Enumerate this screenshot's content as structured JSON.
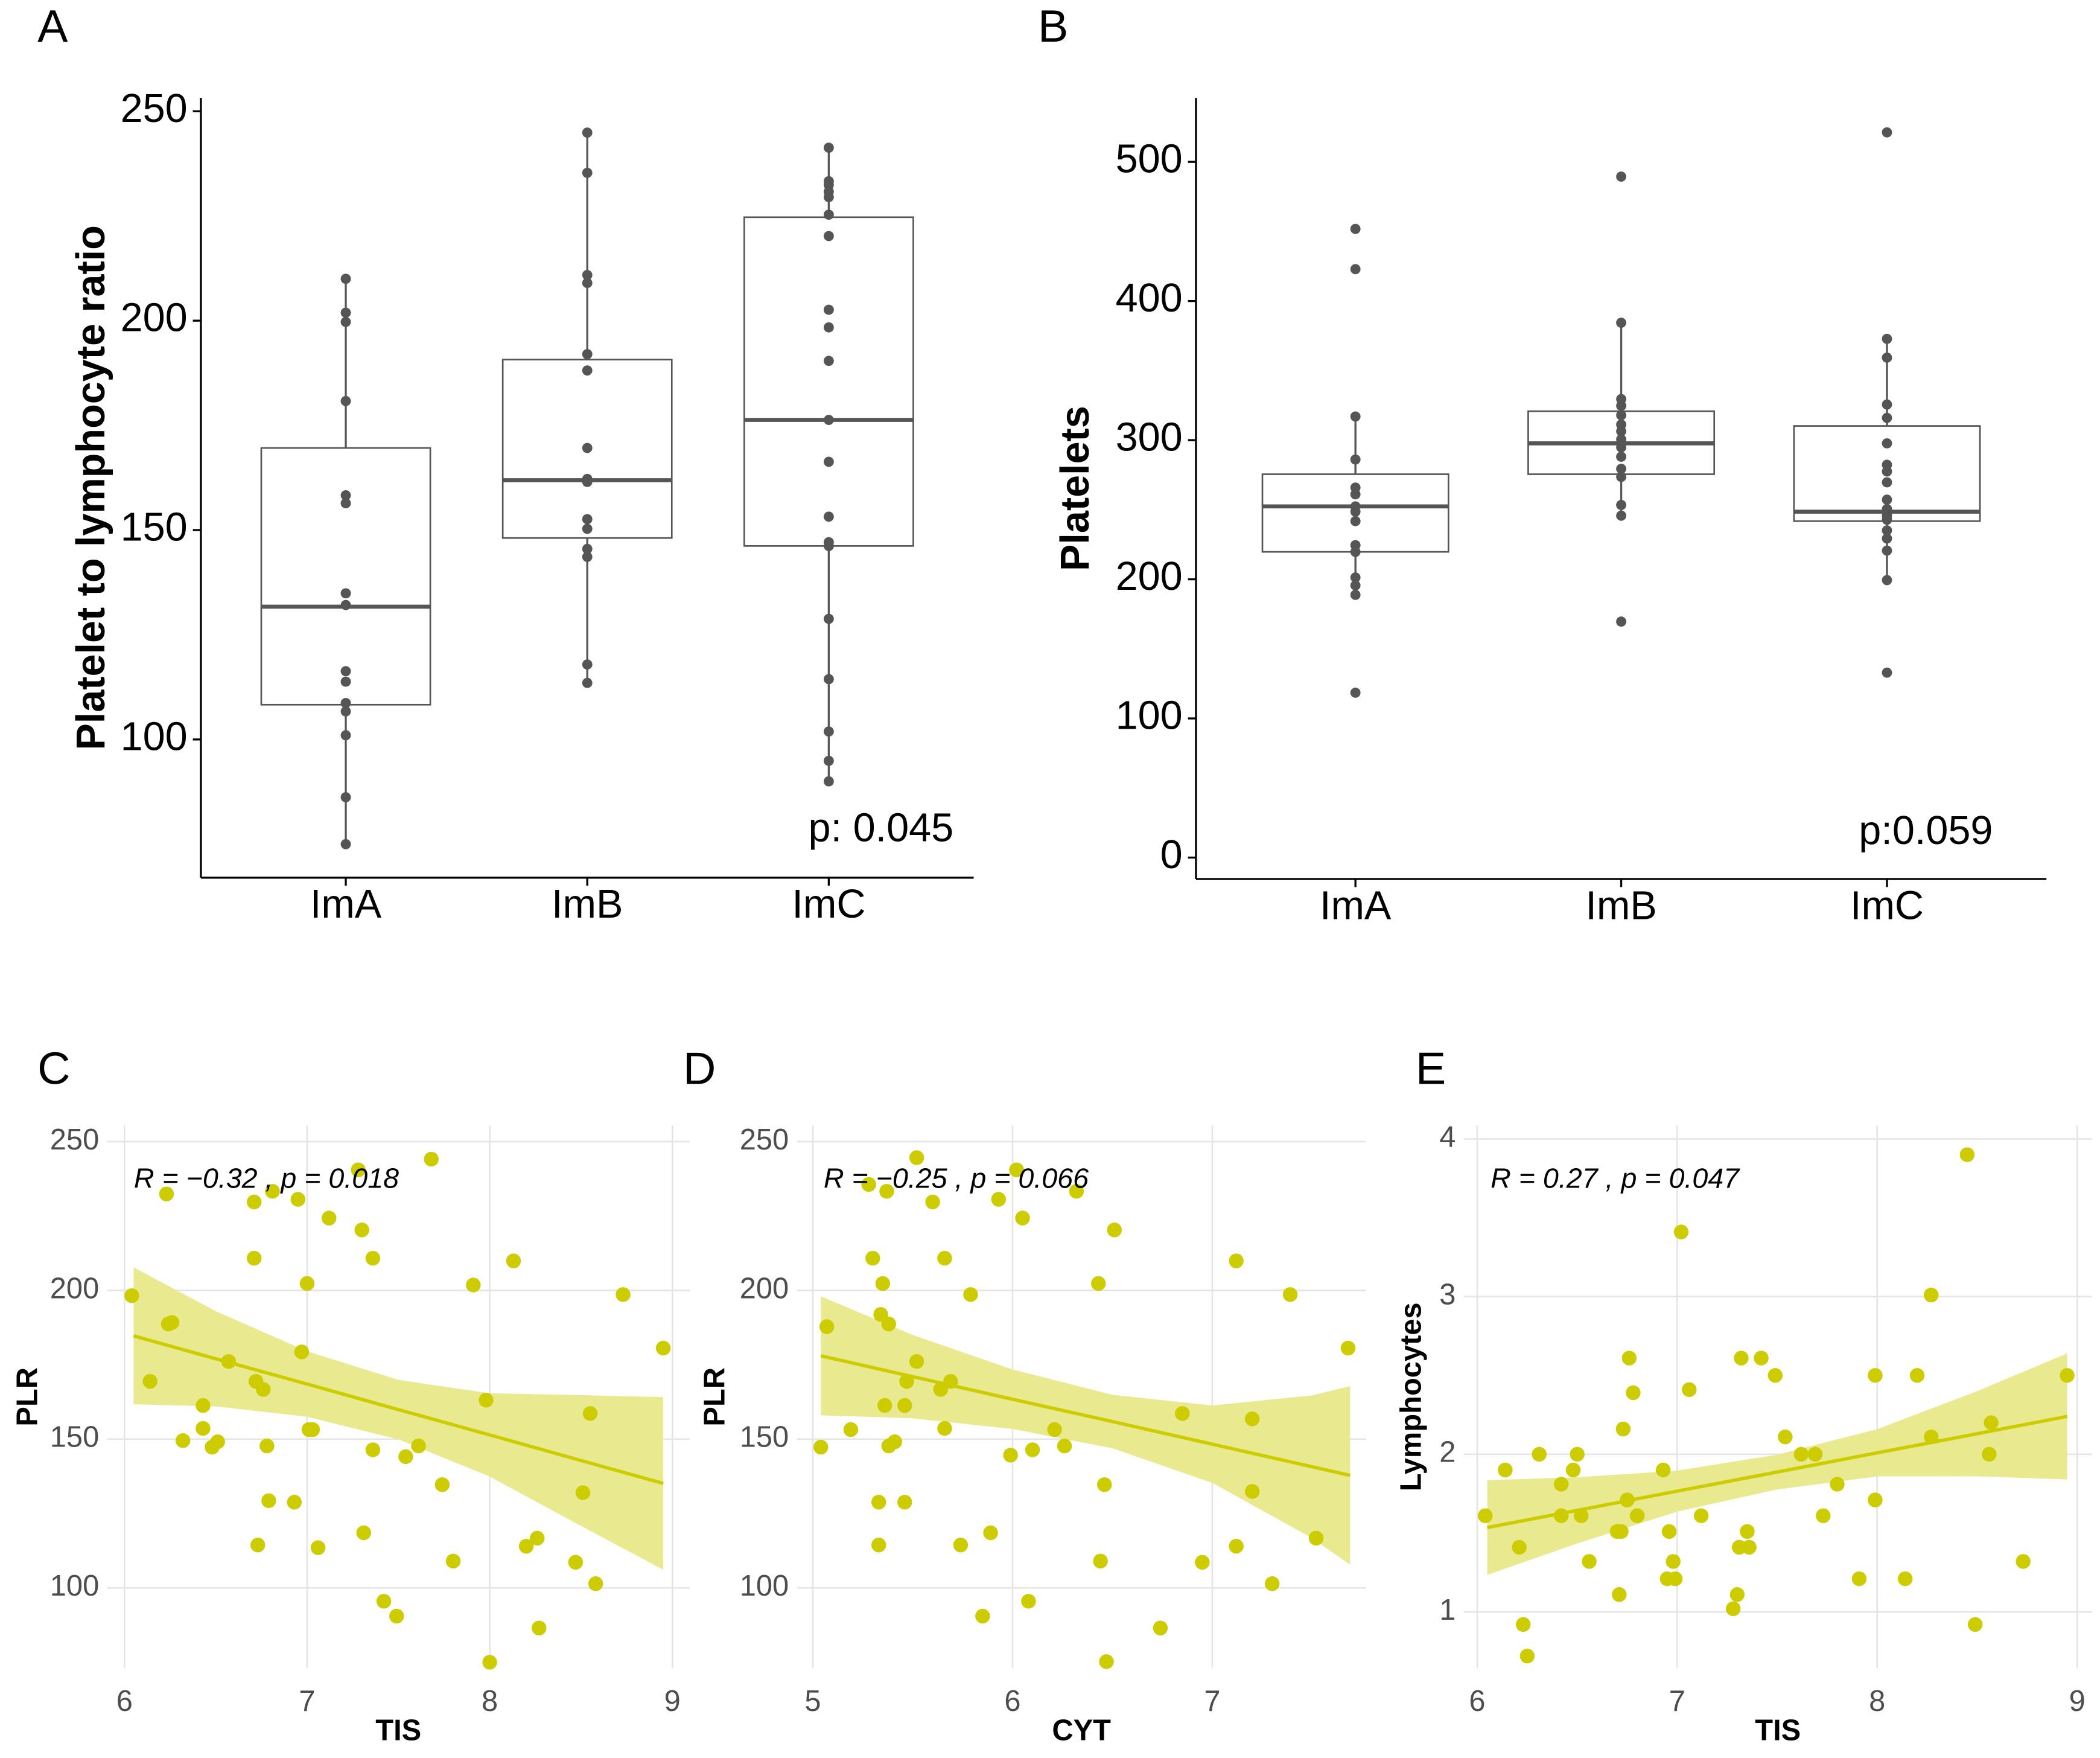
{
  "chart_data": [
    {
      "panel": "A",
      "type": "box",
      "ylabel": "Platelet to lymphocyte ratio",
      "annotation": "p: 0.045",
      "categories": [
        "ImA",
        "ImB",
        "ImC"
      ],
      "ylim": [
        67,
        253.2
      ],
      "yticks": [
        100,
        150,
        200,
        250
      ],
      "point_color": "#555555",
      "boxes": [
        {
          "q1": 108.3,
          "median": 131.7,
          "q3": 169.6,
          "whisker_low": 75,
          "whisker_high": 210,
          "points": [
            210,
            201.9,
            199.7,
            180.8,
            158.3,
            156.4,
            134.9,
            132.1,
            116.3,
            113.8,
            108.7,
            106.7,
            101,
            86.2,
            75
          ]
        },
        {
          "q1": 148.1,
          "median": 161.9,
          "q3": 190.7,
          "whisker_low": 113.5,
          "whisker_high": 244.9,
          "points": [
            244.9,
            235.3,
            210.9,
            209,
            192,
            188.1,
            169.6,
            162.2,
            161.5,
            152.6,
            150.3,
            145.5,
            143.6,
            117.9,
            113.5
          ]
        },
        {
          "q1": 146.2,
          "median": 176.3,
          "q3": 224.7,
          "whisker_low": 90,
          "whisker_high": 241.3,
          "points": [
            241.3,
            233.3,
            232.4,
            230.8,
            229.5,
            225.3,
            220.2,
            202.6,
            198.4,
            190.4,
            176.3,
            166.3,
            153.2,
            147.1,
            146.2,
            128.8,
            114.4,
            101.9,
            94.9,
            90
          ]
        }
      ]
    },
    {
      "panel": "B",
      "type": "box",
      "ylabel": "Platelets",
      "annotation": "p:0.059",
      "categories": [
        "ImA",
        "ImB",
        "ImC"
      ],
      "ylim": [
        -15.4,
        546
      ],
      "yticks": [
        0,
        100,
        200,
        300,
        400,
        500
      ],
      "point_color": "#555555",
      "boxes": [
        {
          "q1": 219.7,
          "median": 252.4,
          "q3": 275.5,
          "whisker_low": 188.8,
          "whisker_high": 317,
          "points": [
            451.8,
            422.9,
            317,
            286.1,
            265.9,
            261.1,
            252.4,
            248.6,
            241.8,
            224.5,
            219.7,
            201.3,
            195.6,
            188.8,
            118.5
          ]
        },
        {
          "q1": 275.5,
          "median": 297.7,
          "q3": 320.8,
          "whisker_low": 245.7,
          "whisker_high": 384.4,
          "points": [
            489.4,
            384.4,
            329.5,
            324.7,
            317.9,
            311.2,
            306.4,
            300.6,
            297.7,
            294.8,
            288.1,
            279.4,
            273.6,
            253.4,
            245.7,
            169.6
          ]
        },
        {
          "q1": 241.8,
          "median": 248.6,
          "q3": 310.2,
          "whisker_low": 199.4,
          "whisker_high": 372.8,
          "points": [
            521.2,
            372.8,
            359.3,
            325.6,
            316,
            297.7,
            282.3,
            277.5,
            269.7,
            257.2,
            250.5,
            245.7,
            242.8,
            235.1,
            229.3,
            220.6,
            199.4,
            132.9
          ]
        }
      ]
    },
    {
      "panel": "C",
      "type": "scatter",
      "xlabel": "TIS",
      "ylabel": "PLR",
      "annotation": "R = −0.32 , p = 0.018",
      "xlim": [
        5.905,
        9.095
      ],
      "ylim": [
        73,
        255.4
      ],
      "xticks": [
        6,
        7,
        8,
        9
      ],
      "yticks": [
        100,
        150,
        200,
        250
      ],
      "grid": true,
      "color": "#cccc00",
      "band_color": "#e9e98f",
      "x": [
        6.04,
        6.14,
        6.23,
        6.24,
        6.26,
        6.32,
        6.43,
        6.43,
        6.48,
        6.51,
        6.57,
        6.71,
        6.71,
        6.72,
        6.73,
        6.76,
        6.78,
        6.79,
        6.81,
        6.95,
        6.97,
        7.0,
        7.01,
        7.03,
        6.93,
        7.06,
        7.12,
        7.28,
        7.3,
        7.31,
        7.36,
        7.36,
        7.42,
        7.49,
        7.54,
        7.61,
        7.68,
        7.74,
        7.8,
        7.91,
        7.98,
        8.13,
        8.2,
        8.26,
        8.0,
        8.27,
        8.47,
        8.51,
        8.55,
        8.58,
        8.73,
        8.95
      ],
      "y": [
        198.2,
        169.4,
        232.4,
        188.7,
        189.2,
        149.5,
        161.3,
        153.6,
        147.3,
        149.1,
        176.1,
        229.7,
        210.8,
        169.4,
        114.4,
        166.7,
        147.7,
        129.3,
        233.3,
        230.6,
        179.3,
        202.3,
        153.2,
        153.2,
        128.8,
        113.5,
        224.3,
        240.5,
        220.3,
        118.5,
        210.8,
        146.4,
        95.5,
        90.5,
        144.1,
        147.7,
        244.1,
        134.7,
        109,
        201.8,
        163.1,
        209.9,
        114,
        116.7,
        75,
        86.5,
        108.6,
        132,
        158.6,
        101.4,
        198.6,
        180.6
      ],
      "fit": {
        "x": [
          6.05,
          6.5,
          7,
          7.5,
          8,
          8.5,
          8.95
        ],
        "y": [
          184.7,
          177,
          168.5,
          159.9,
          151.4,
          142.8,
          135.1
        ],
        "lower": [
          161.7,
          161,
          157.5,
          149.9,
          137.4,
          120.8,
          106.1
        ],
        "upper": [
          207.7,
          193,
          179.5,
          169.9,
          165.4,
          164.8,
          164.1
        ]
      }
    },
    {
      "panel": "D",
      "type": "scatter",
      "xlabel": "CYT",
      "ylabel": "PLR",
      "annotation": "R = −0.25 , p = 0.066",
      "xlim": [
        4.92,
        7.77
      ],
      "ylim": [
        73,
        255.4
      ],
      "xticks": [
        5,
        6,
        7
      ],
      "yticks": [
        100,
        150,
        200,
        250
      ],
      "grid": true,
      "color": "#cccc00",
      "band_color": "#e9e98f",
      "x": [
        5.04,
        5.07,
        5.19,
        5.28,
        5.3,
        5.33,
        5.33,
        5.34,
        5.35,
        5.36,
        5.37,
        5.38,
        5.38,
        5.41,
        5.46,
        5.46,
        5.47,
        5.52,
        5.52,
        5.6,
        5.64,
        5.66,
        5.66,
        5.69,
        5.74,
        5.79,
        5.85,
        5.89,
        5.93,
        5.99,
        6.02,
        6.05,
        6.08,
        6.1,
        6.21,
        6.26,
        6.32,
        6.43,
        6.44,
        6.46,
        6.47,
        6.51,
        6.74,
        6.85,
        6.95,
        7.12,
        7.12,
        7.2,
        7.2,
        7.3,
        7.39,
        7.52,
        7.68
      ],
      "y": [
        147.3,
        187.8,
        153.2,
        235.6,
        210.8,
        128.8,
        114.4,
        191.9,
        202.3,
        161.3,
        233.3,
        188.7,
        147.7,
        149.1,
        128.8,
        161.3,
        169.4,
        244.6,
        176.1,
        229.7,
        166.7,
        153.6,
        210.8,
        169.4,
        114.4,
        198.6,
        90.5,
        118.5,
        230.6,
        144.6,
        240.5,
        224.3,
        95.5,
        146.4,
        153.2,
        147.7,
        233.3,
        202.3,
        109,
        134.7,
        75.2,
        220.3,
        86.5,
        158.6,
        108.6,
        209.9,
        114,
        156.8,
        132.4,
        101.4,
        198.6,
        116.7,
        180.6
      ],
      "fit": {
        "x": [
          5.04,
          5.5,
          6,
          6.5,
          7,
          7.5,
          7.69
        ],
        "y": [
          178,
          171,
          163.4,
          155.9,
          148.3,
          140.7,
          137.8
        ],
        "lower": [
          158,
          157,
          153.4,
          146.9,
          135.3,
          116.7,
          107.8
        ],
        "upper": [
          198,
          185,
          173.4,
          164.9,
          161.3,
          164.7,
          167.8
        ]
      }
    },
    {
      "panel": "E",
      "type": "scatter",
      "xlabel": "TIS",
      "ylabel": "Lymphocytes",
      "annotation": "R = 0.27 , p = 0.047",
      "xlim": [
        5.933,
        9.074
      ],
      "ylim": [
        0.643,
        4.085
      ],
      "xticks": [
        6,
        7,
        8,
        9
      ],
      "yticks": [
        1,
        2,
        3,
        4
      ],
      "grid": true,
      "color": "#cccc00",
      "band_color": "#e9e98f",
      "x": [
        6.04,
        6.14,
        6.21,
        6.23,
        6.25,
        6.31,
        6.42,
        6.42,
        6.48,
        6.5,
        6.52,
        6.56,
        6.7,
        6.71,
        6.72,
        6.73,
        6.75,
        6.76,
        6.78,
        6.8,
        6.93,
        6.95,
        6.96,
        6.98,
        6.99,
        7.02,
        7.06,
        7.12,
        7.28,
        7.3,
        7.31,
        7.32,
        7.35,
        7.36,
        7.42,
        7.49,
        7.54,
        7.62,
        7.69,
        7.73,
        7.8,
        7.91,
        7.99,
        7.99,
        8.14,
        8.2,
        8.27,
        8.27,
        8.45,
        8.49,
        8.56,
        8.57,
        8.73,
        8.95
      ],
      "y": [
        1.61,
        1.9,
        1.41,
        0.92,
        0.72,
        2.0,
        1.81,
        1.61,
        1.9,
        2.0,
        1.61,
        1.32,
        1.51,
        1.11,
        1.51,
        2.16,
        1.71,
        2.61,
        2.39,
        1.61,
        1.9,
        1.21,
        1.51,
        1.32,
        1.21,
        3.41,
        2.41,
        1.61,
        1.02,
        1.11,
        1.41,
        2.61,
        1.51,
        1.41,
        2.61,
        2.5,
        2.11,
        2.0,
        2.0,
        1.61,
        1.81,
        1.21,
        1.71,
        2.5,
        1.21,
        2.5,
        3.01,
        2.11,
        3.9,
        0.92,
        2.0,
        2.2,
        1.32,
        2.5
      ],
      "fit": {
        "x": [
          6.05,
          6.5,
          7,
          7.5,
          8,
          8.5,
          8.95
        ],
        "y": [
          1.535,
          1.644,
          1.766,
          1.887,
          2.009,
          2.13,
          2.24
        ],
        "lower": [
          1.235,
          1.434,
          1.636,
          1.777,
          1.859,
          1.86,
          1.84
        ],
        "upper": [
          1.835,
          1.854,
          1.896,
          1.997,
          2.159,
          2.4,
          2.64
        ]
      }
    }
  ]
}
